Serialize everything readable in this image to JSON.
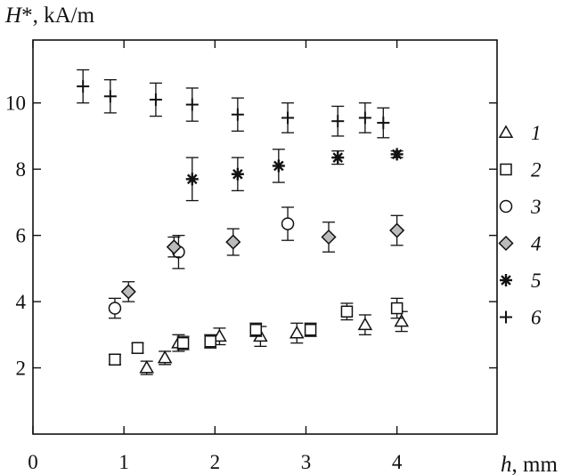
{
  "chart_data": {
    "type": "scatter",
    "title": "",
    "ylabel_sym": "H",
    "ylabel_rest": "*, kA/m",
    "xlabel_sym": "h",
    "xlabel_rest": ", mm",
    "xlim": [
      0,
      5.1
    ],
    "ylim": [
      0,
      11.9
    ],
    "xticks": [
      0,
      1,
      2,
      3,
      4
    ],
    "yticks": [
      2,
      4,
      6,
      8,
      10
    ],
    "grid": false,
    "legend_position": "right",
    "series": [
      {
        "name": "1",
        "marker": "triangle",
        "points": [
          {
            "x": 1.25,
            "y": 2.0,
            "err": 0.2
          },
          {
            "x": 1.45,
            "y": 2.3,
            "err": 0.2
          },
          {
            "x": 1.6,
            "y": 2.75,
            "err": 0.25
          },
          {
            "x": 2.05,
            "y": 2.95,
            "err": 0.25
          },
          {
            "x": 2.5,
            "y": 2.95,
            "err": 0.3
          },
          {
            "x": 2.9,
            "y": 3.05,
            "err": 0.3
          },
          {
            "x": 3.65,
            "y": 3.3,
            "err": 0.3
          },
          {
            "x": 4.05,
            "y": 3.4,
            "err": 0.3
          }
        ]
      },
      {
        "name": "2",
        "marker": "square",
        "points": [
          {
            "x": 0.9,
            "y": 2.25,
            "err": 0.15
          },
          {
            "x": 1.15,
            "y": 2.6,
            "err": 0.15
          },
          {
            "x": 1.65,
            "y": 2.75,
            "err": 0.2
          },
          {
            "x": 1.95,
            "y": 2.8,
            "err": 0.2
          },
          {
            "x": 2.45,
            "y": 3.15,
            "err": 0.2
          },
          {
            "x": 3.05,
            "y": 3.15,
            "err": 0.2
          },
          {
            "x": 3.45,
            "y": 3.7,
            "err": 0.25
          },
          {
            "x": 4.0,
            "y": 3.8,
            "err": 0.3
          }
        ]
      },
      {
        "name": "3",
        "marker": "circle",
        "points": [
          {
            "x": 0.9,
            "y": 3.8,
            "err": 0.3
          },
          {
            "x": 1.6,
            "y": 5.5,
            "err": 0.5
          },
          {
            "x": 2.8,
            "y": 6.35,
            "err": 0.5
          }
        ]
      },
      {
        "name": "4",
        "marker": "diamond",
        "points": [
          {
            "x": 1.05,
            "y": 4.3,
            "err": 0.3
          },
          {
            "x": 1.55,
            "y": 5.65,
            "err": 0.3
          },
          {
            "x": 2.2,
            "y": 5.8,
            "err": 0.4
          },
          {
            "x": 3.25,
            "y": 5.95,
            "err": 0.45
          },
          {
            "x": 4.0,
            "y": 6.15,
            "err": 0.45
          }
        ]
      },
      {
        "name": "5",
        "marker": "asterisk",
        "points": [
          {
            "x": 1.75,
            "y": 7.7,
            "err": 0.65
          },
          {
            "x": 2.25,
            "y": 7.85,
            "err": 0.5
          },
          {
            "x": 2.7,
            "y": 8.1,
            "err": 0.5
          },
          {
            "x": 3.35,
            "y": 8.35,
            "err": 0.2
          },
          {
            "x": 4.0,
            "y": 8.45,
            "err": 0.1
          }
        ]
      },
      {
        "name": "6",
        "marker": "plus",
        "points": [
          {
            "x": 0.55,
            "y": 10.5,
            "err": 0.5
          },
          {
            "x": 0.85,
            "y": 10.2,
            "err": 0.5
          },
          {
            "x": 1.35,
            "y": 10.1,
            "err": 0.5
          },
          {
            "x": 1.75,
            "y": 9.95,
            "err": 0.5
          },
          {
            "x": 2.25,
            "y": 9.65,
            "err": 0.5
          },
          {
            "x": 2.8,
            "y": 9.55,
            "err": 0.45
          },
          {
            "x": 3.35,
            "y": 9.45,
            "err": 0.45
          },
          {
            "x": 3.65,
            "y": 9.55,
            "err": 0.45
          },
          {
            "x": 3.85,
            "y": 9.4,
            "err": 0.45
          }
        ]
      }
    ]
  }
}
